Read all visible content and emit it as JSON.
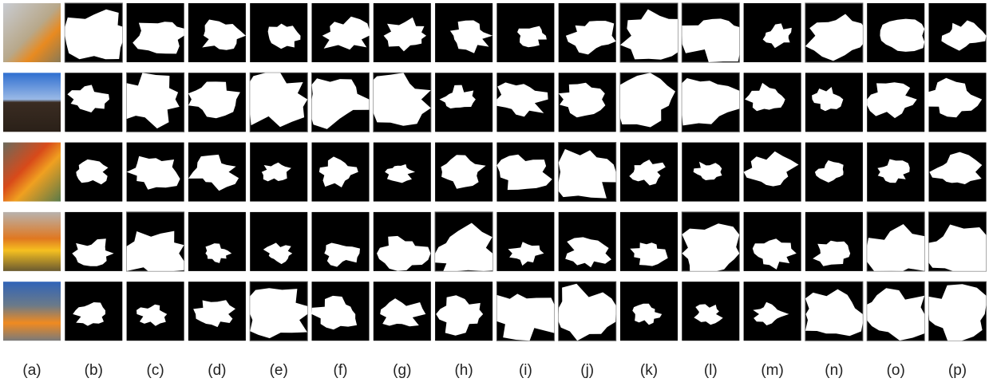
{
  "figure": {
    "column_labels": [
      "(a)",
      "(b)",
      "(c)",
      "(d)",
      "(e)",
      "(f)",
      "(g)",
      "(h)",
      "(i)",
      "(j)",
      "(k)",
      "(l)",
      "(m)",
      "(n)",
      "(o)",
      "(p)"
    ]
  }
}
